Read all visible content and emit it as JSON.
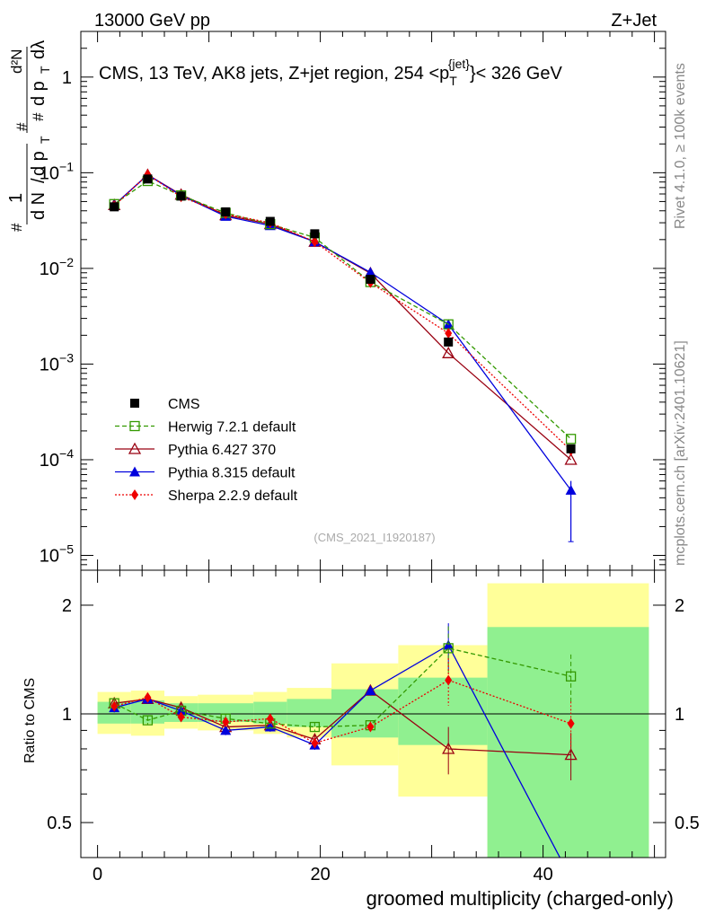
{
  "header": {
    "left": "13000 GeV pp",
    "right": "Z+Jet"
  },
  "side": {
    "rivet": "Rivet 4.1.0, ≥ 100k events",
    "mcplots": "mcplots.cern.ch [arXiv:2401.10621]"
  },
  "colors": {
    "cms": "#000000",
    "herwig": "#339900",
    "pythia6": "#990011",
    "pythia8": "#0000dd",
    "sherpa": "#ee0000",
    "band_green": "#90f090",
    "band_yellow": "#ffff99"
  },
  "chart_data": [
    {
      "type": "line",
      "title": "CMS, 13 TeV, AK8 jets, Z+jet region, 254 <p_T^{jet}< 326 GeV",
      "title_parts": {
        "main": "CMS, 13 TeV, AK8 jets, Z+jet region, 254 <p",
        "sub": "T",
        "sup": "{jet}",
        "tail": "}< 326 GeV"
      },
      "ylabel": "1/(dN/dp_T) d²N/(dp_T dλ)",
      "ylabel_parts": {
        "sharp": "#",
        "one": "1",
        "dN": "d N",
        "slash": "/",
        "dp": "d p",
        "sub_T": "T",
        "d2N": "d²N",
        "dp2": "d p",
        "dlambda": "dλ"
      },
      "yscale": "log",
      "ylim": [
        7e-06,
        3
      ],
      "xlim": [
        -1.5,
        51
      ],
      "yticks": [
        {
          "v": 1e-05,
          "base": "10",
          "exp": "−5"
        },
        {
          "v": 0.0001,
          "base": "10",
          "exp": "−4"
        },
        {
          "v": 0.001,
          "base": "10",
          "exp": "−3"
        },
        {
          "v": 0.01,
          "base": "10",
          "exp": "−2"
        },
        {
          "v": 0.1,
          "base": "10",
          "exp": "−1"
        },
        {
          "v": 1,
          "base": "1",
          "exp": ""
        }
      ],
      "watermark": "(CMS_2021_I1920187)",
      "legend_position": "bottom-left",
      "series": [
        {
          "name": "CMS",
          "key": "cms",
          "marker": "square-filled",
          "line": "none",
          "x": [
            1.5,
            4.5,
            7.5,
            11.5,
            15.5,
            19.5,
            24.5,
            31.5,
            42.5
          ],
          "y": [
            0.044,
            0.086,
            0.057,
            0.039,
            0.031,
            0.023,
            0.0077,
            0.0017,
            0.00013
          ]
        },
        {
          "name": "Herwig 7.2.1 default",
          "key": "herwig",
          "marker": "square-open",
          "line": "dashed",
          "x": [
            1.5,
            4.5,
            7.5,
            11.5,
            15.5,
            19.5,
            24.5,
            31.5,
            42.5
          ],
          "y": [
            0.047,
            0.082,
            0.058,
            0.038,
            0.029,
            0.021,
            0.0072,
            0.0026,
            0.000165
          ]
        },
        {
          "name": "Pythia 6.427 370",
          "key": "pythia6",
          "marker": "triangle-open",
          "line": "solid",
          "x": [
            1.5,
            4.5,
            7.5,
            11.5,
            15.5,
            19.5,
            24.5,
            31.5,
            42.5
          ],
          "y": [
            0.046,
            0.095,
            0.059,
            0.036,
            0.029,
            0.019,
            0.0089,
            0.0013,
            0.0001
          ]
        },
        {
          "name": "Pythia 8.315 default",
          "key": "pythia8",
          "marker": "triangle-filled",
          "line": "solid",
          "x": [
            1.5,
            4.5,
            7.5,
            11.5,
            15.5,
            19.5,
            24.5,
            31.5,
            42.5
          ],
          "y": [
            0.046,
            0.095,
            0.058,
            0.035,
            0.028,
            0.019,
            0.0091,
            0.0026,
            4.8e-05
          ]
        },
        {
          "name": "Sherpa 2.2.9 default",
          "key": "sherpa",
          "marker": "diamond-filled",
          "line": "dotted",
          "x": [
            1.5,
            4.5,
            7.5,
            11.5,
            15.5,
            19.5,
            24.5,
            31.5,
            42.5
          ],
          "y": [
            0.045,
            0.096,
            0.056,
            0.037,
            0.03,
            0.019,
            0.0071,
            0.0021,
            0.000125
          ]
        }
      ]
    },
    {
      "type": "line",
      "ylabel": "Ratio to CMS",
      "xlabel": "groomed multiplicity (charged-only)",
      "yscale": "log",
      "ylim": [
        0.4,
        2.5
      ],
      "xlim": [
        -1.5,
        51
      ],
      "yticks": [
        0.5,
        1,
        2
      ],
      "ytick_labels": [
        "0.5",
        "1",
        "2"
      ],
      "xticks": [
        0,
        20,
        40
      ],
      "xtick_labels": [
        "0",
        "20",
        "40"
      ],
      "bins": [
        {
          "lo": 0,
          "hi": 3,
          "green": [
            0.94,
            1.08
          ],
          "yellow": [
            0.88,
            1.15
          ]
        },
        {
          "lo": 3,
          "hi": 6,
          "green": [
            0.94,
            1.09
          ],
          "yellow": [
            0.87,
            1.16
          ]
        },
        {
          "lo": 6,
          "hi": 9,
          "green": [
            0.95,
            1.07
          ],
          "yellow": [
            0.91,
            1.12
          ]
        },
        {
          "lo": 9,
          "hi": 14,
          "green": [
            0.95,
            1.07
          ],
          "yellow": [
            0.9,
            1.13
          ]
        },
        {
          "lo": 14,
          "hi": 17,
          "green": [
            0.94,
            1.08
          ],
          "yellow": [
            0.88,
            1.15
          ]
        },
        {
          "lo": 17,
          "hi": 21,
          "green": [
            0.92,
            1.1
          ],
          "yellow": [
            0.86,
            1.18
          ]
        },
        {
          "lo": 21,
          "hi": 27,
          "green": [
            0.86,
            1.17
          ],
          "yellow": [
            0.72,
            1.38
          ]
        },
        {
          "lo": 27,
          "hi": 35,
          "green": [
            0.82,
            1.26
          ],
          "yellow": [
            0.59,
            1.55
          ]
        },
        {
          "lo": 35,
          "hi": 49.5,
          "green": [
            0.4,
            1.74
          ],
          "yellow": [
            0.4,
            2.3
          ]
        }
      ],
      "series": [
        {
          "name": "Herwig 7.2.1 default",
          "key": "herwig",
          "x": [
            1.5,
            4.5,
            7.5,
            11.5,
            15.5,
            19.5,
            24.5,
            31.5,
            42.5
          ],
          "y": [
            1.07,
            0.96,
            1.02,
            0.97,
            0.94,
            0.92,
            0.93,
            1.52,
            1.27
          ]
        },
        {
          "name": "Pythia 6.427 370",
          "key": "pythia6",
          "x": [
            1.5,
            4.5,
            7.5,
            11.5,
            15.5,
            19.5,
            24.5,
            31.5,
            42.5
          ],
          "y": [
            1.07,
            1.1,
            1.04,
            0.92,
            0.93,
            0.85,
            1.16,
            0.8,
            0.77
          ]
        },
        {
          "name": "Pythia 8.315 default",
          "key": "pythia8",
          "x": [
            1.5,
            4.5,
            7.5,
            11.5,
            15.5,
            19.5,
            24.5,
            31.5,
            42.5
          ],
          "y": [
            1.04,
            1.1,
            1.02,
            0.9,
            0.92,
            0.82,
            1.16,
            1.55,
            0.35
          ]
        },
        {
          "name": "Sherpa 2.2.9 default",
          "key": "sherpa",
          "x": [
            1.5,
            4.5,
            7.5,
            11.5,
            15.5,
            19.5,
            24.5,
            31.5,
            42.5
          ],
          "y": [
            1.05,
            1.11,
            0.98,
            0.95,
            0.97,
            0.83,
            0.92,
            1.24,
            0.94
          ]
        }
      ]
    }
  ]
}
